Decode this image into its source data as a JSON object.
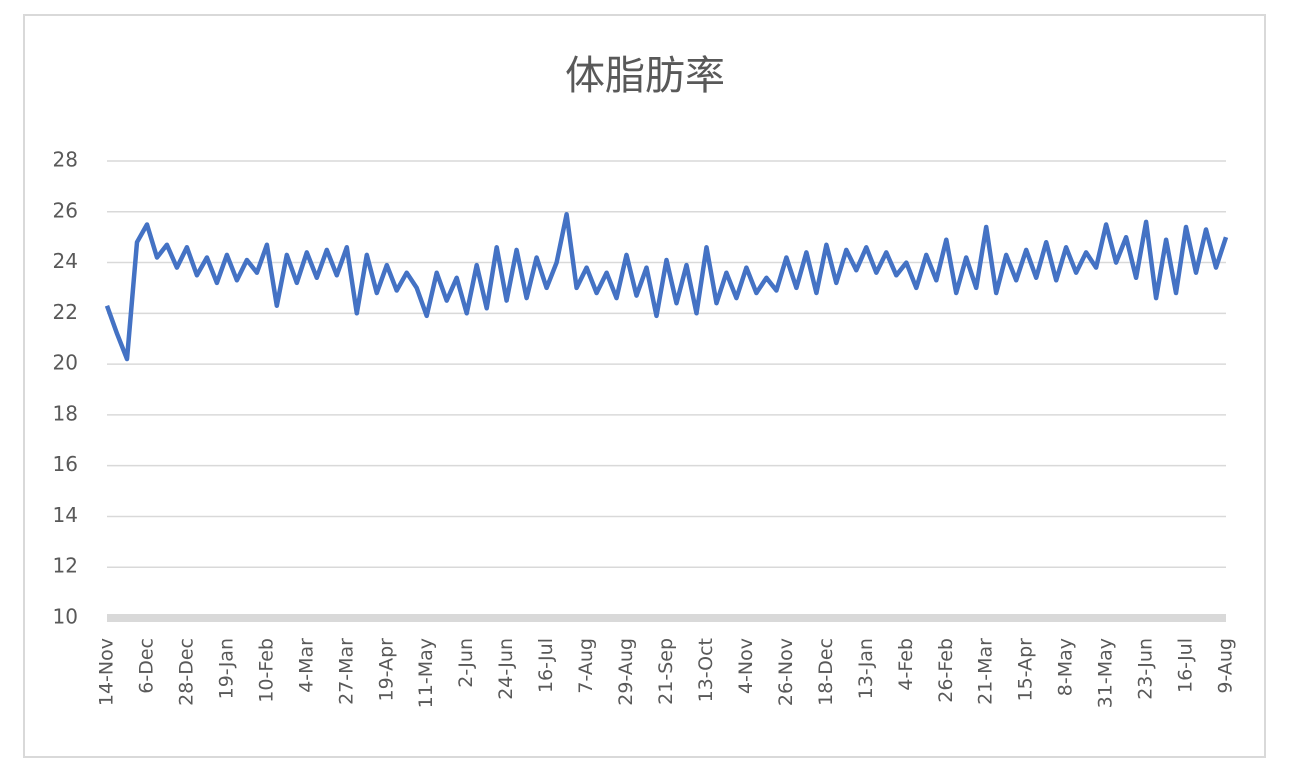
{
  "chart_data": {
    "type": "line",
    "title": "体脂肪率",
    "categories": [
      "14-Nov",
      null,
      null,
      null,
      "6-Dec",
      null,
      null,
      null,
      "28-Dec",
      null,
      null,
      null,
      "19-Jan",
      null,
      null,
      null,
      "10-Feb",
      null,
      null,
      null,
      "4-Mar",
      null,
      null,
      null,
      "27-Mar",
      null,
      null,
      null,
      "19-Apr",
      null,
      null,
      null,
      "11-May",
      null,
      null,
      null,
      "2-Jun",
      null,
      null,
      null,
      "24-Jun",
      null,
      null,
      null,
      "16-Jul",
      null,
      null,
      null,
      "7-Aug",
      null,
      null,
      null,
      "29-Aug",
      null,
      null,
      null,
      "21-Sep",
      null,
      null,
      null,
      "13-Oct",
      null,
      null,
      null,
      "4-Nov",
      null,
      null,
      null,
      "26-Nov",
      null,
      null,
      null,
      "18-Dec",
      null,
      null,
      null,
      "13-Jan",
      null,
      null,
      null,
      "4-Feb",
      null,
      null,
      null,
      "26-Feb",
      null,
      null,
      null,
      "21-Mar",
      null,
      null,
      null,
      "15-Apr",
      null,
      null,
      null,
      "8-May",
      null,
      null,
      null,
      "31-May",
      null,
      null,
      null,
      "23-Jun",
      null,
      null,
      null,
      "16-Jul",
      null,
      null,
      null,
      "9-Aug"
    ],
    "values": [
      22.3,
      21.2,
      20.2,
      24.8,
      25.5,
      24.2,
      24.7,
      23.8,
      24.6,
      23.5,
      24.2,
      23.2,
      24.3,
      23.3,
      24.1,
      23.6,
      24.7,
      22.3,
      24.3,
      23.2,
      24.4,
      23.4,
      24.5,
      23.5,
      24.6,
      22.0,
      24.3,
      22.8,
      23.9,
      22.9,
      23.6,
      23.0,
      21.9,
      23.6,
      22.5,
      23.4,
      22.0,
      23.9,
      22.2,
      24.6,
      22.5,
      24.5,
      22.6,
      24.2,
      23.0,
      24.0,
      25.9,
      23.0,
      23.8,
      22.8,
      23.6,
      22.6,
      24.3,
      22.7,
      23.8,
      21.9,
      24.1,
      22.4,
      23.9,
      22.0,
      24.6,
      22.4,
      23.6,
      22.6,
      23.8,
      22.8,
      23.4,
      22.9,
      24.2,
      23.0,
      24.4,
      22.8,
      24.7,
      23.2,
      24.5,
      23.7,
      24.6,
      23.6,
      24.4,
      23.5,
      24.0,
      23.0,
      24.3,
      23.3,
      24.9,
      22.8,
      24.2,
      23.0,
      25.4,
      22.8,
      24.3,
      23.3,
      24.5,
      23.4,
      24.8,
      23.3,
      24.6,
      23.6,
      24.4,
      23.8,
      25.5,
      24.0,
      25.0,
      23.4,
      25.6,
      22.6,
      24.9,
      22.8,
      25.4,
      23.6,
      25.3,
      23.8,
      25.0
    ],
    "color": "#4472c4",
    "ylim": [
      10,
      28
    ],
    "yticks": [
      10,
      12,
      14,
      16,
      18,
      20,
      22,
      24,
      26,
      28
    ],
    "grid": true
  }
}
